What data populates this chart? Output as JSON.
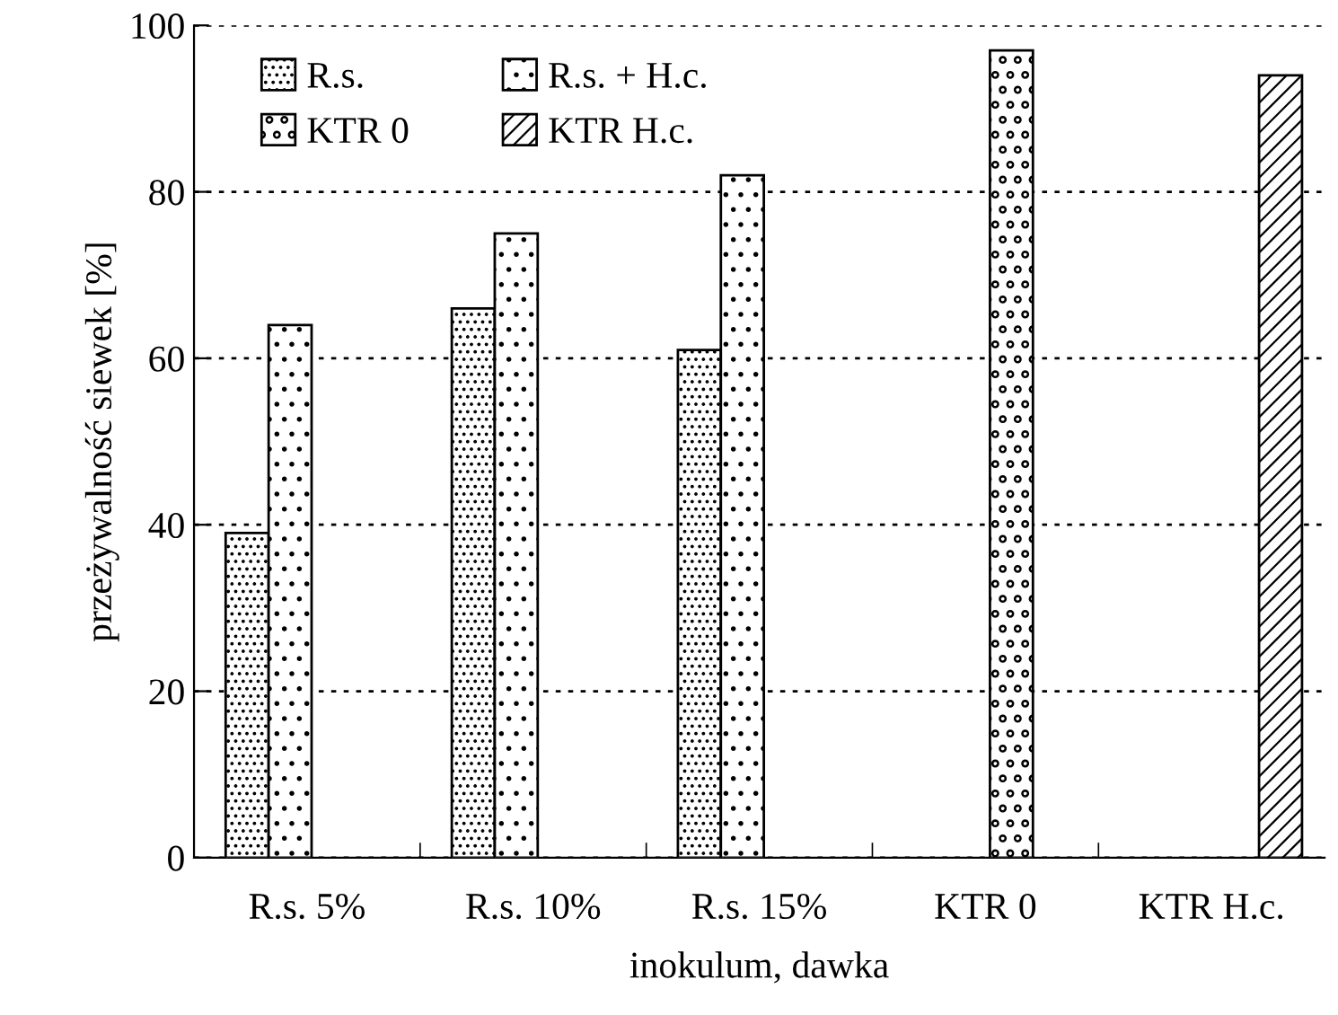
{
  "chart_data": {
    "type": "bar",
    "xlabel": "inokulum, dawka",
    "ylabel": "przeżywalność siewek [%]",
    "categories": [
      "R.s. 5%",
      "R.s. 10%",
      "R.s. 15%",
      "KTR 0",
      "KTR H.c."
    ],
    "series": [
      {
        "name": "R.s.",
        "color": "#000000",
        "values": [
          39,
          66,
          61,
          null,
          null
        ]
      },
      {
        "name": "R.s. + H.c.",
        "color": "#000000",
        "values": [
          64,
          75,
          82,
          null,
          null
        ]
      },
      {
        "name": "KTR 0",
        "color": "#000000",
        "values": [
          null,
          null,
          null,
          97,
          null
        ]
      },
      {
        "name": "KTR H.c.",
        "color": "#000000",
        "values": [
          null,
          null,
          null,
          null,
          94
        ]
      }
    ],
    "ylim": [
      0,
      100
    ],
    "yticks": [
      0,
      20,
      40,
      60,
      80,
      100
    ],
    "grid": "y",
    "legend": "top left"
  }
}
